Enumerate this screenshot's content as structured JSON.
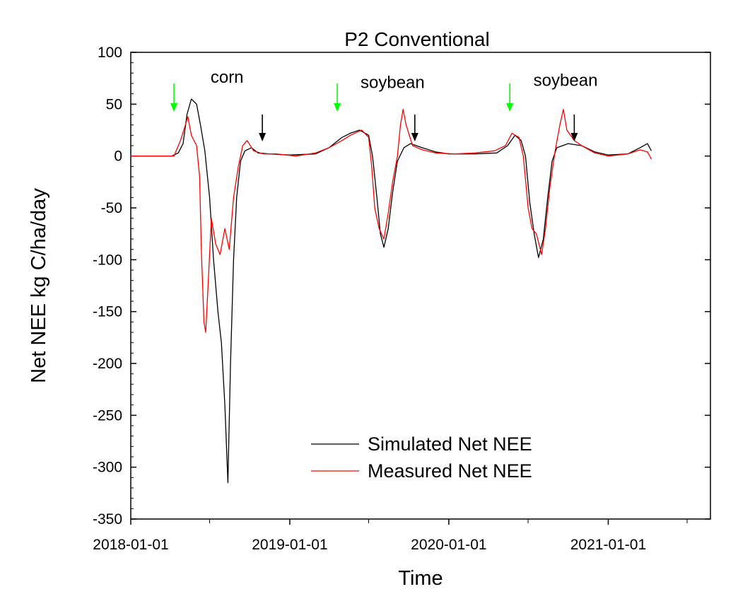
{
  "chart_data": {
    "type": "line",
    "title": "P2 Conventional",
    "xlabel": "Time",
    "ylabel": "Net NEE kg C/ha/day",
    "xlim": [
      "2018-01-01",
      "2021-07-01"
    ],
    "ylim": [
      -350,
      100
    ],
    "x_ticks": [
      "2018-01-01",
      "2019-01-01",
      "2020-01-01",
      "2021-01-01"
    ],
    "x_minor_ticks": [
      "2018-07-01",
      "2019-07-01",
      "2020-07-01",
      "2021-07-01"
    ],
    "y_ticks": [
      100,
      50,
      0,
      -50,
      -100,
      -150,
      -200,
      -250,
      -300,
      -350
    ],
    "y_minor_step": 10,
    "legend_position": "bottom-right",
    "series": [
      {
        "name": "Simulated Net NEE",
        "color": "#000000",
        "points": [
          [
            "2018-01-01",
            0
          ],
          [
            "2018-03-01",
            0
          ],
          [
            "2018-04-05",
            0
          ],
          [
            "2018-04-20",
            3
          ],
          [
            "2018-05-01",
            12
          ],
          [
            "2018-05-10",
            40
          ],
          [
            "2018-05-20",
            55
          ],
          [
            "2018-06-01",
            50
          ],
          [
            "2018-06-10",
            30
          ],
          [
            "2018-06-20",
            5
          ],
          [
            "2018-07-01",
            -40
          ],
          [
            "2018-07-10",
            -100
          ],
          [
            "2018-07-20",
            -150
          ],
          [
            "2018-07-28",
            -180
          ],
          [
            "2018-08-05",
            -240
          ],
          [
            "2018-08-12",
            -315
          ],
          [
            "2018-08-18",
            -200
          ],
          [
            "2018-08-25",
            -100
          ],
          [
            "2018-09-01",
            -40
          ],
          [
            "2018-09-10",
            -5
          ],
          [
            "2018-09-20",
            5
          ],
          [
            "2018-10-05",
            8
          ],
          [
            "2018-10-20",
            3
          ],
          [
            "2018-11-15",
            2
          ],
          [
            "2019-01-01",
            1
          ],
          [
            "2019-03-01",
            2
          ],
          [
            "2019-04-01",
            8
          ],
          [
            "2019-05-01",
            18
          ],
          [
            "2019-05-20",
            22
          ],
          [
            "2019-06-10",
            25
          ],
          [
            "2019-07-01",
            20
          ],
          [
            "2019-07-10",
            0
          ],
          [
            "2019-07-20",
            -40
          ],
          [
            "2019-07-28",
            -75
          ],
          [
            "2019-08-05",
            -88
          ],
          [
            "2019-08-15",
            -70
          ],
          [
            "2019-08-25",
            -35
          ],
          [
            "2019-09-05",
            -5
          ],
          [
            "2019-09-20",
            8
          ],
          [
            "2019-10-05",
            12
          ],
          [
            "2019-11-01",
            8
          ],
          [
            "2019-12-01",
            4
          ],
          [
            "2020-01-01",
            2
          ],
          [
            "2020-03-01",
            2
          ],
          [
            "2020-04-20",
            3
          ],
          [
            "2020-05-15",
            10
          ],
          [
            "2020-06-01",
            20
          ],
          [
            "2020-06-15",
            15
          ],
          [
            "2020-06-25",
            0
          ],
          [
            "2020-07-05",
            -45
          ],
          [
            "2020-07-15",
            -75
          ],
          [
            "2020-07-25",
            -98
          ],
          [
            "2020-08-05",
            -80
          ],
          [
            "2020-08-15",
            -40
          ],
          [
            "2020-08-25",
            -5
          ],
          [
            "2020-09-05",
            8
          ],
          [
            "2020-10-01",
            12
          ],
          [
            "2020-11-01",
            10
          ],
          [
            "2020-12-01",
            4
          ],
          [
            "2021-01-01",
            1
          ],
          [
            "2021-02-15",
            2
          ],
          [
            "2021-03-15",
            8
          ],
          [
            "2021-04-01",
            12
          ],
          [
            "2021-04-10",
            5
          ]
        ]
      },
      {
        "name": "Measured Net NEE",
        "color": "#ff0000",
        "points": [
          [
            "2018-01-01",
            0
          ],
          [
            "2018-03-15",
            0
          ],
          [
            "2018-04-10",
            0
          ],
          [
            "2018-04-25",
            15
          ],
          [
            "2018-05-05",
            28
          ],
          [
            "2018-05-12",
            38
          ],
          [
            "2018-05-20",
            20
          ],
          [
            "2018-06-01",
            10
          ],
          [
            "2018-06-08",
            -20
          ],
          [
            "2018-06-12",
            -90
          ],
          [
            "2018-06-18",
            -160
          ],
          [
            "2018-06-22",
            -170
          ],
          [
            "2018-06-28",
            -120
          ],
          [
            "2018-07-05",
            -60
          ],
          [
            "2018-07-15",
            -85
          ],
          [
            "2018-07-25",
            -95
          ],
          [
            "2018-08-05",
            -70
          ],
          [
            "2018-08-15",
            -90
          ],
          [
            "2018-08-25",
            -40
          ],
          [
            "2018-09-05",
            -10
          ],
          [
            "2018-09-15",
            10
          ],
          [
            "2018-09-25",
            15
          ],
          [
            "2018-10-10",
            5
          ],
          [
            "2018-11-01",
            2
          ],
          [
            "2018-12-01",
            2
          ],
          [
            "2019-01-15",
            0
          ],
          [
            "2019-03-01",
            3
          ],
          [
            "2019-04-01",
            8
          ],
          [
            "2019-05-01",
            15
          ],
          [
            "2019-05-20",
            20
          ],
          [
            "2019-06-15",
            25
          ],
          [
            "2019-07-01",
            18
          ],
          [
            "2019-07-08",
            -10
          ],
          [
            "2019-07-15",
            -50
          ],
          [
            "2019-07-25",
            -70
          ],
          [
            "2019-08-05",
            -80
          ],
          [
            "2019-08-15",
            -55
          ],
          [
            "2019-08-25",
            -25
          ],
          [
            "2019-09-05",
            0
          ],
          [
            "2019-09-12",
            30
          ],
          [
            "2019-09-18",
            45
          ],
          [
            "2019-09-25",
            30
          ],
          [
            "2019-10-10",
            10
          ],
          [
            "2019-11-01",
            6
          ],
          [
            "2019-12-01",
            3
          ],
          [
            "2020-01-15",
            2
          ],
          [
            "2020-03-01",
            3
          ],
          [
            "2020-04-15",
            5
          ],
          [
            "2020-05-10",
            10
          ],
          [
            "2020-05-25",
            22
          ],
          [
            "2020-06-10",
            18
          ],
          [
            "2020-06-20",
            0
          ],
          [
            "2020-07-01",
            -50
          ],
          [
            "2020-07-10",
            -70
          ],
          [
            "2020-07-20",
            -75
          ],
          [
            "2020-08-01",
            -95
          ],
          [
            "2020-08-10",
            -70
          ],
          [
            "2020-08-20",
            -30
          ],
          [
            "2020-09-01",
            5
          ],
          [
            "2020-09-12",
            30
          ],
          [
            "2020-09-20",
            45
          ],
          [
            "2020-09-28",
            25
          ],
          [
            "2020-10-15",
            15
          ],
          [
            "2020-11-01",
            10
          ],
          [
            "2020-12-01",
            3
          ],
          [
            "2021-01-01",
            0
          ],
          [
            "2021-02-15",
            2
          ],
          [
            "2021-03-15",
            6
          ],
          [
            "2021-04-01",
            4
          ],
          [
            "2021-04-10",
            -3
          ]
        ]
      }
    ],
    "annotations": [
      {
        "text": "corn",
        "date": "2018-08-10",
        "value": 76
      },
      {
        "text": "soybean",
        "date": "2019-08-25",
        "value": 71
      },
      {
        "text": "soybean",
        "date": "2020-09-25",
        "value": 73
      }
    ],
    "planting_arrows": [
      {
        "date": "2018-04-10",
        "color": "#00ff00"
      },
      {
        "date": "2019-04-20",
        "color": "#00ff00"
      },
      {
        "date": "2020-05-20",
        "color": "#00ff00"
      }
    ],
    "harvest_arrows": [
      {
        "date": "2018-10-30",
        "color": "#000000"
      },
      {
        "date": "2019-10-15",
        "color": "#000000"
      },
      {
        "date": "2020-10-15",
        "color": "#000000"
      }
    ]
  }
}
